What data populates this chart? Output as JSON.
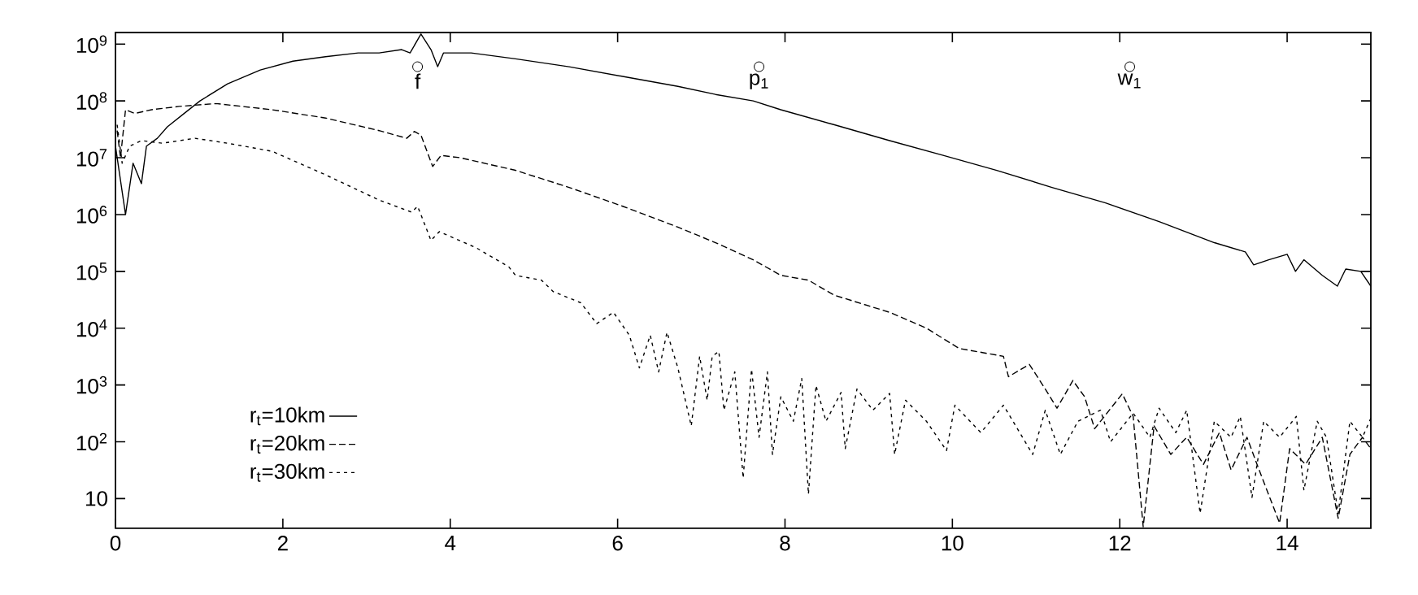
{
  "chart_data": {
    "type": "line",
    "xlim": [
      0,
      15
    ],
    "ylim": [
      3,
      1600000000.0
    ],
    "log": "y",
    "legend": "bottom left",
    "xticks": [
      0,
      2,
      4,
      6,
      8,
      10,
      12,
      14
    ],
    "yticks": [
      10,
      {
        "value": 100,
        "label": "10$^{2}$"
      },
      {
        "value": 1000,
        "label": "10$^{3}$"
      },
      {
        "value": 10000,
        "label": "10$^{4}$"
      },
      {
        "value": 100000,
        "label": "10$^{5}$"
      },
      {
        "value": 1000000,
        "label": "10$^{6}$"
      },
      {
        "value": 10000000,
        "label": "10$^{7}$"
      },
      {
        "value": 100000000,
        "label": "10$^{8}$"
      },
      {
        "value": 1000000000,
        "label": "10$^{9}$"
      }
    ],
    "annotations": [
      {
        "text": "f",
        "x": 3.61,
        "y": 400000000.0
      },
      {
        "text": "p$_{1}$",
        "x": 7.69,
        "y": 400000000.0
      },
      {
        "text": "w$_{1}$",
        "x": 12.12,
        "y": 400000000.0
      }
    ],
    "series": [
      {
        "name": "r$_{t}$=10km",
        "color": "#000000",
        "line_style": "solid",
        "x": [
          0,
          0.12,
          0.21,
          0.31,
          0.37,
          0.5,
          0.62,
          0.82,
          1.01,
          1.34,
          1.73,
          2.12,
          2.51,
          2.9,
          3.15,
          3.42,
          3.52,
          3.65,
          3.77,
          3.85,
          3.92,
          4.25,
          4.78,
          5.42,
          6.06,
          6.72,
          7.17,
          7.62,
          7.95,
          8.59,
          9.25,
          9.89,
          10.53,
          11.19,
          11.83,
          12.47,
          13.13,
          13.5,
          13.6,
          13.78,
          14.0,
          14.1,
          14.2,
          14.42,
          14.6,
          14.7,
          14.88,
          15
        ],
        "values": [
          16000000.0,
          1000000.0,
          8000000.0,
          3500000.0,
          16000000.0,
          22000000.0,
          35000000.0,
          60000000.0,
          100000000.0,
          200000000.0,
          350000000.0,
          500000000.0,
          600000000.0,
          700000000.0,
          700000000.0,
          800000000.0,
          700000000.0,
          1500000000.0,
          800000000.0,
          400000000.0,
          700000000.0,
          700000000.0,
          550000000.0,
          400000000.0,
          270000000.0,
          180000000.0,
          130000000.0,
          100000000.0,
          70000000.0,
          38000000.0,
          20000000.0,
          11000000.0,
          6000000.0,
          3000000.0,
          1600000.0,
          750000.0,
          320000.0,
          220000.0,
          130000.0,
          160000.0,
          200000.0,
          100000.0,
          160000.0,
          85000.0,
          55000.0,
          110000.0,
          100000.0,
          55000.0
        ]
      },
      {
        "name": "r$_{t}$=20km",
        "color": "#000000",
        "line_style": "dashed",
        "x": [
          0.02,
          0.06,
          0.12,
          0.23,
          0.43,
          0.76,
          1.2,
          1.87,
          2.51,
          3.15,
          3.48,
          3.57,
          3.65,
          3.79,
          3.89,
          4.12,
          4.78,
          5.42,
          6.06,
          6.72,
          7.17,
          7.62,
          7.95,
          8.28,
          8.59,
          9.25,
          9.69,
          10.08,
          10.61,
          10.67,
          10.92,
          11.11,
          11.25,
          11.44,
          11.58,
          11.7,
          12.03,
          12.16,
          12.28,
          12.41,
          12.61,
          12.8,
          13.0,
          13.19,
          13.33,
          13.52,
          13.64,
          13.91,
          14.03,
          14.22,
          14.42,
          14.61,
          14.75,
          14.9,
          15
        ],
        "values": [
          30000000.0,
          10000000.0,
          70000000.0,
          60000000.0,
          70000000.0,
          80000000.0,
          90000000.0,
          70000000.0,
          50000000.0,
          30000000.0,
          22000000.0,
          29000000.0,
          25000000.0,
          7000000.0,
          11000000.0,
          10000000.0,
          6000000.0,
          3000000.0,
          1400000.0,
          600000.0,
          320000.0,
          160000.0,
          85000.0,
          70000.0,
          38000.0,
          19000.0,
          10000.0,
          4400.0,
          3200.0,
          1400.0,
          2300.0,
          850,
          390,
          1200,
          620,
          170,
          700,
          280,
          3.2,
          190,
          60,
          120,
          40,
          145,
          32,
          120,
          40,
          3.7,
          76,
          40,
          120,
          4.5,
          60,
          120,
          76
        ]
      },
      {
        "name": "r$_{t}$=30km",
        "color": "#000000",
        "line_style": "dotted",
        "x": [
          0.02,
          0.08,
          0.17,
          0.31,
          0.56,
          0.95,
          1.34,
          1.87,
          2.51,
          3.15,
          3.54,
          3.61,
          3.77,
          3.87,
          4.31,
          4.7,
          4.78,
          5.09,
          5.23,
          5.56,
          5.75,
          5.95,
          6.14,
          6.26,
          6.39,
          6.49,
          6.59,
          6.72,
          6.88,
          6.98,
          7.07,
          7.13,
          7.21,
          7.27,
          7.4,
          7.5,
          7.6,
          7.69,
          7.79,
          7.85,
          7.95,
          8.1,
          8.2,
          8.28,
          8.37,
          8.49,
          8.67,
          8.72,
          8.86,
          9.05,
          9.25,
          9.31,
          9.44,
          9.69,
          9.93,
          10.03,
          10.34,
          10.61,
          10.96,
          11.11,
          11.29,
          11.5,
          11.77,
          11.89,
          12.16,
          12.36,
          12.47,
          12.67,
          12.8,
          12.96,
          13.13,
          13.33,
          13.44,
          13.58,
          13.72,
          13.91,
          14.11,
          14.2,
          14.36,
          14.47,
          14.61,
          14.75,
          14.9,
          15
        ],
        "values": [
          38000000.0,
          8000000.0,
          16000000.0,
          20000000.0,
          18000000.0,
          22000000.0,
          18000000.0,
          13000000.0,
          5000000.0,
          1800000.0,
          1100000.0,
          1400000.0,
          350000.0,
          500000.0,
          260000.0,
          120000.0,
          85000.0,
          70000.0,
          44000.0,
          28000.0,
          12000.0,
          19000.0,
          7500.0,
          2000.0,
          7500.0,
          1700.0,
          8500.0,
          2000.0,
          190,
          3200.0,
          540,
          3200.0,
          3900.0,
          360,
          1700.0,
          23,
          1900.0,
          120,
          1700.0,
          60,
          620,
          230,
          1300.0,
          12,
          980,
          230,
          740,
          76,
          850,
          360,
          710,
          60,
          540,
          230,
          70,
          440,
          145,
          440,
          60,
          360,
          60,
          230,
          360,
          100,
          320,
          120,
          390,
          145,
          360,
          5.5,
          230,
          120,
          280,
          10.5,
          230,
          120,
          280,
          14,
          230,
          120,
          5.5,
          230,
          120,
          260
        ]
      }
    ]
  }
}
